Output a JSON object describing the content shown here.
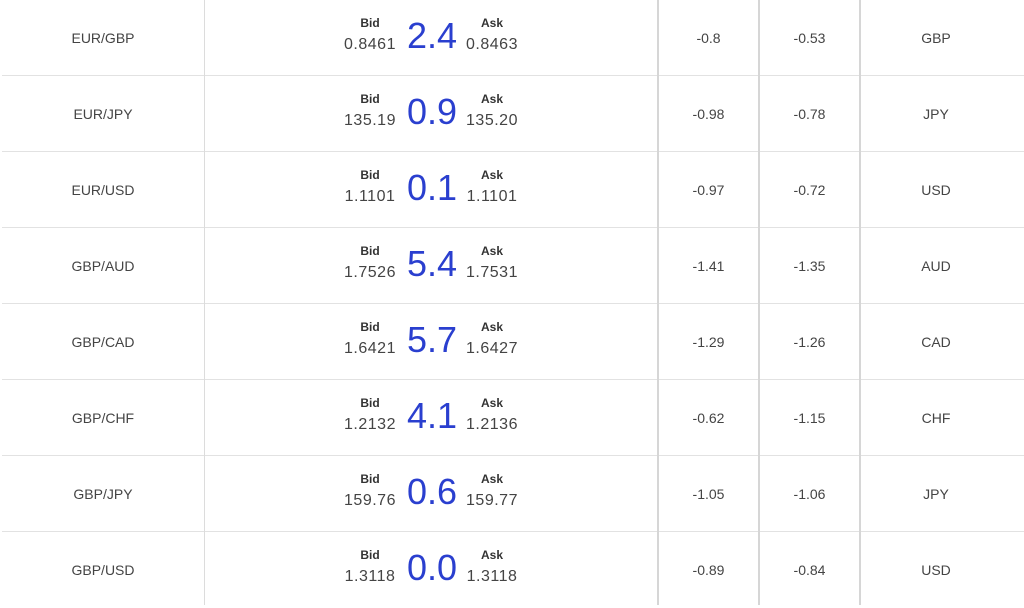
{
  "labels": {
    "bid": "Bid",
    "ask": "Ask"
  },
  "colors": {
    "spread": "#2a3fcf",
    "divider": "#e2e2e2"
  },
  "rows": [
    {
      "pair": "EUR/GBP",
      "bid": "0.8461",
      "spread": "2.4",
      "ask": "0.8463",
      "change1": "-0.8",
      "change2": "-0.53",
      "currency": "GBP"
    },
    {
      "pair": "EUR/JPY",
      "bid": "135.19",
      "spread": "0.9",
      "ask": "135.20",
      "change1": "-0.98",
      "change2": "-0.78",
      "currency": "JPY"
    },
    {
      "pair": "EUR/USD",
      "bid": "1.1101",
      "spread": "0.1",
      "ask": "1.1101",
      "change1": "-0.97",
      "change2": "-0.72",
      "currency": "USD"
    },
    {
      "pair": "GBP/AUD",
      "bid": "1.7526",
      "spread": "5.4",
      "ask": "1.7531",
      "change1": "-1.41",
      "change2": "-1.35",
      "currency": "AUD"
    },
    {
      "pair": "GBP/CAD",
      "bid": "1.6421",
      "spread": "5.7",
      "ask": "1.6427",
      "change1": "-1.29",
      "change2": "-1.26",
      "currency": "CAD"
    },
    {
      "pair": "GBP/CHF",
      "bid": "1.2132",
      "spread": "4.1",
      "ask": "1.2136",
      "change1": "-0.62",
      "change2": "-1.15",
      "currency": "CHF"
    },
    {
      "pair": "GBP/JPY",
      "bid": "159.76",
      "spread": "0.6",
      "ask": "159.77",
      "change1": "-1.05",
      "change2": "-1.06",
      "currency": "JPY"
    },
    {
      "pair": "GBP/USD",
      "bid": "1.3118",
      "spread": "0.0",
      "ask": "1.3118",
      "change1": "-0.89",
      "change2": "-0.84",
      "currency": "USD"
    }
  ]
}
